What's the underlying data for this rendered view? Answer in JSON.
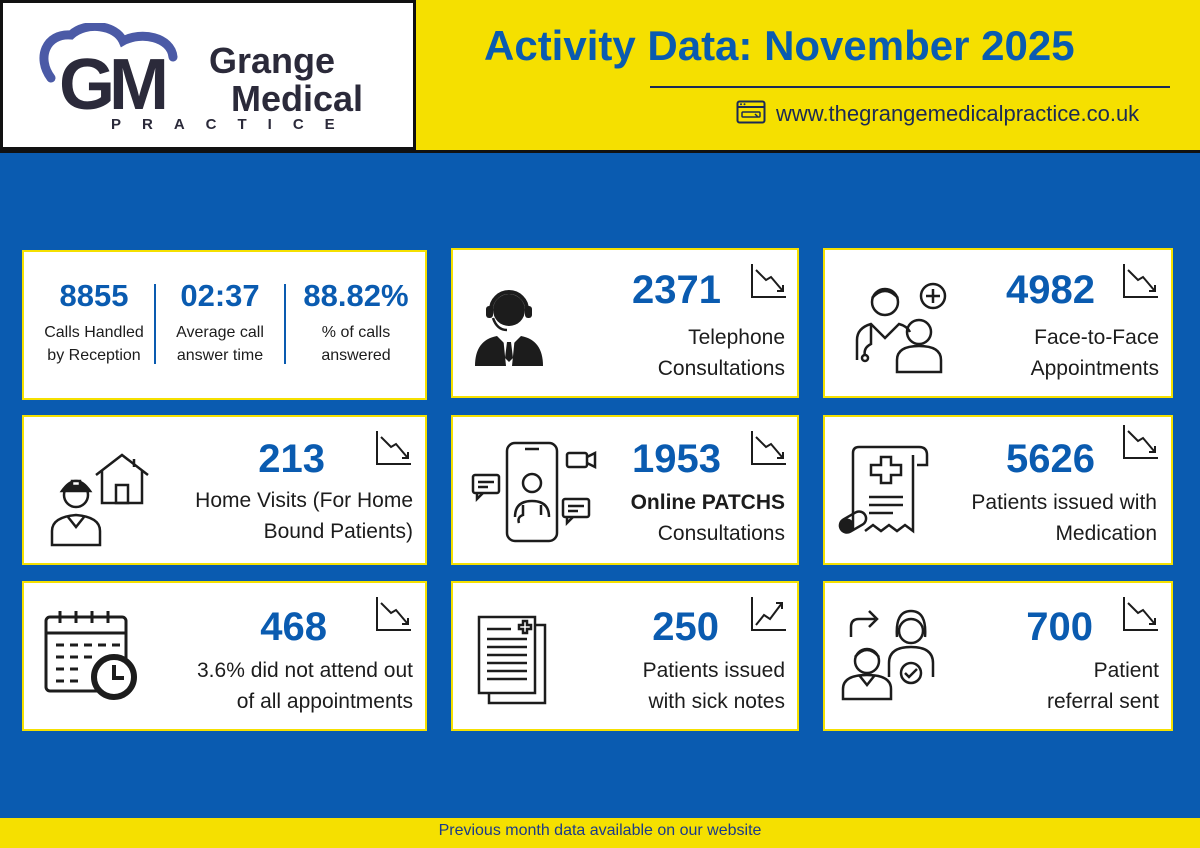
{
  "header": {
    "logo": {
      "initials": "GM",
      "word1": "Grange",
      "word2": "Medical",
      "word3": "PRACTICE"
    },
    "title": "Activity Data: November 2025",
    "website": "www.thegrangemedicalpractice.co.uk",
    "colors": {
      "yellow": "#f5e000",
      "blue": "#0a5bb0"
    }
  },
  "calls": [
    {
      "value": "8855",
      "label_line1": "Calls Handled",
      "label_line2": "by Reception"
    },
    {
      "value": "02:37",
      "label_line1": "Average call",
      "label_line2": "answer time"
    },
    {
      "value": "88.82%",
      "label_line1": "% of calls",
      "label_line2": "answered"
    }
  ],
  "cards": {
    "telephone": {
      "value": "2371",
      "line1": "Telephone",
      "line2": "Consultations",
      "trend": "down",
      "icon": "call-center-agent-icon"
    },
    "face_to_face": {
      "value": "4982",
      "line1": "Face-to-Face",
      "line2": "Appointments",
      "trend": "down",
      "icon": "doctor-patient-icon"
    },
    "home_visits": {
      "value": "213",
      "line1": "Home Visits (For Home",
      "line2": "Bound Patients)",
      "trend": "down",
      "icon": "home-visit-icon"
    },
    "online": {
      "value": "1953",
      "line1": "Online PATCHS",
      "line2": "Consultations",
      "trend": "down",
      "icon": "phone-video-consult-icon"
    },
    "medication": {
      "value": "5626",
      "line1": "Patients issued with",
      "line2": "Medication",
      "trend": "down",
      "icon": "prescription-scroll-icon"
    },
    "dna": {
      "value": "468",
      "line1": "3.6% did not attend out",
      "line2": "of all appointments",
      "trend": "down",
      "icon": "calendar-clock-icon"
    },
    "sick_notes": {
      "value": "250",
      "line1": "Patients issued",
      "line2": "with sick notes",
      "trend": "up",
      "icon": "medical-documents-icon"
    },
    "referral": {
      "value": "700",
      "line1": "Patient",
      "line2": "referral sent",
      "trend": "down",
      "icon": "patient-referral-icon"
    }
  },
  "footer": {
    "text": "Previous month data available on our website"
  }
}
